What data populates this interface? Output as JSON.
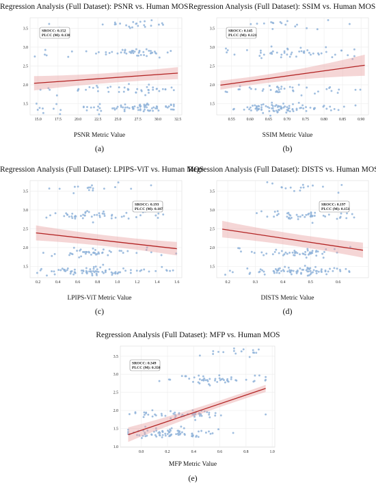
{
  "colors": {
    "points": "#8fb3d9",
    "line": "#b22222",
    "band": "#e8a3a3",
    "grid": "#ececec"
  },
  "chart_data": [
    {
      "type": "scatter",
      "caption": "(a)",
      "title": "Regression Analysis (Full Dataset): PSNR vs. Human MOS",
      "xlabel": "PSNR Metric Value",
      "ylabel": "",
      "xlim": [
        14,
        33
      ],
      "ylim": [
        1.2,
        3.78
      ],
      "xticks": [
        "15.0",
        "17.5",
        "20.0",
        "22.5",
        "25.0",
        "27.5",
        "30.0",
        "32.5"
      ],
      "yticks": [
        "1.5",
        "2.0",
        "2.5",
        "3.0",
        "3.5"
      ],
      "grid": true,
      "stats": {
        "srocc": "SROCC: 0.152",
        "plcc": "PLCC (M): 0.138"
      },
      "regression": {
        "x": [
          14.5,
          32.5
        ],
        "y": [
          2.04,
          2.31
        ],
        "band_halfwidth": [
          0.19,
          0.16
        ]
      },
      "point_summary": {
        "x_range": [
          14.5,
          32
        ],
        "x_mode": 27.5,
        "count": 200,
        "mos_levels": [
          1.38,
          1.88,
          2.85,
          3.6
        ]
      },
      "series": [
        {
          "x": [],
          "y": []
        }
      ]
    },
    {
      "type": "scatter",
      "caption": "(b)",
      "title": "Regression Analysis (Full Dataset): SSIM vs. Human MOS",
      "xlabel": "SSIM Metric Value",
      "ylabel": "",
      "xlim": [
        0.51,
        0.92
      ],
      "ylim": [
        1.2,
        3.78
      ],
      "xticks": [
        "0.55",
        "0.60",
        "0.65",
        "0.70",
        "0.75",
        "0.80",
        "0.85",
        "0.90"
      ],
      "yticks": [
        "1.5",
        "2.0",
        "2.5",
        "3.0",
        "3.5"
      ],
      "grid": true,
      "stats": {
        "srocc": "SROCC: 0.145",
        "plcc": "PLCC (M): 0.121"
      },
      "regression": {
        "x": [
          0.52,
          0.91
        ],
        "y": [
          1.99,
          2.52
        ],
        "band_halfwidth": [
          0.12,
          0.28
        ]
      },
      "point_summary": {
        "x_range": [
          0.53,
          0.9
        ],
        "x_mode": 0.69,
        "count": 200,
        "mos_levels": [
          1.38,
          1.88,
          2.85,
          3.6
        ]
      },
      "series": [
        {
          "x": [],
          "y": []
        }
      ]
    },
    {
      "type": "scatter",
      "caption": "(c)",
      "title": "Regression Analysis (Full Dataset): LPIPS-ViT vs. Human MOS",
      "xlabel": "LPIPS-ViT Metric Value",
      "ylabel": "",
      "xlim": [
        0.12,
        1.65
      ],
      "ylim": [
        1.2,
        3.78
      ],
      "xticks": [
        "0.2",
        "0.4",
        "0.6",
        "0.8",
        "1.0",
        "1.2",
        "1.4",
        "1.6"
      ],
      "yticks": [
        "1.5",
        "2.0",
        "2.5",
        "3.0",
        "3.5"
      ],
      "grid": true,
      "stats": {
        "srocc": "SROCC: 0.193",
        "plcc": "PLCC (M): 0.187"
      },
      "regression": {
        "x": [
          0.18,
          1.6
        ],
        "y": [
          2.39,
          1.97
        ],
        "band_halfwidth": [
          0.2,
          0.18
        ]
      },
      "point_summary": {
        "x_range": [
          0.18,
          1.6
        ],
        "x_mode": 0.7,
        "count": 200,
        "mos_levels": [
          1.38,
          1.88,
          2.85,
          3.6
        ]
      },
      "series": [
        {
          "x": [],
          "y": []
        }
      ]
    },
    {
      "type": "scatter",
      "caption": "(d)",
      "title": "Regression Analysis (Full Dataset): DISTS vs. Human MOS",
      "xlabel": "DISTS Metric Value",
      "ylabel": "",
      "xlim": [
        0.16,
        0.71
      ],
      "ylim": [
        1.2,
        3.78
      ],
      "xticks": [
        "0.2",
        "0.3",
        "0.4",
        "0.5",
        "0.6"
      ],
      "yticks": [
        "1.5",
        "2.0",
        "2.5",
        "3.0",
        "3.5"
      ],
      "grid": true,
      "stats": {
        "srocc": "SROCC: 0.197",
        "plcc": "PLCC (M): 0.151"
      },
      "regression": {
        "x": [
          0.18,
          0.69
        ],
        "y": [
          2.49,
          1.93
        ],
        "band_halfwidth": [
          0.22,
          0.2
        ]
      },
      "point_summary": {
        "x_range": [
          0.18,
          0.68
        ],
        "x_mode": 0.47,
        "count": 200,
        "mos_levels": [
          1.38,
          1.88,
          2.85,
          3.6
        ]
      },
      "series": [
        {
          "x": [],
          "y": []
        }
      ]
    },
    {
      "type": "scatter",
      "caption": "(e)",
      "title": "Regression Analysis (Full Dataset): MFP vs. Human MOS",
      "xlabel": "MFP  Metric Value",
      "ylabel": "",
      "xlim": [
        -0.16,
        1.02
      ],
      "ylim": [
        0.98,
        3.78
      ],
      "xticks": [
        "0.0",
        "0.2",
        "0.4",
        "0.6",
        "0.8",
        "1.0"
      ],
      "yticks": [
        "1.0",
        "1.5",
        "2.0",
        "2.5",
        "3.0",
        "3.5"
      ],
      "grid": true,
      "stats": {
        "srocc": "SROCC: 0.349",
        "plcc": "PLCC (M): 0.350"
      },
      "regression": {
        "x": [
          -0.1,
          0.95
        ],
        "y": [
          1.33,
          2.61
        ],
        "band_halfwidth": [
          0.2,
          0.1
        ]
      },
      "point_summary": {
        "x_range": [
          -0.1,
          0.95
        ],
        "x_mode": 0.6,
        "count": 200,
        "mos_levels": [
          1.38,
          1.88,
          2.85,
          3.6
        ]
      },
      "series": [
        {
          "x": [],
          "y": []
        }
      ]
    }
  ]
}
